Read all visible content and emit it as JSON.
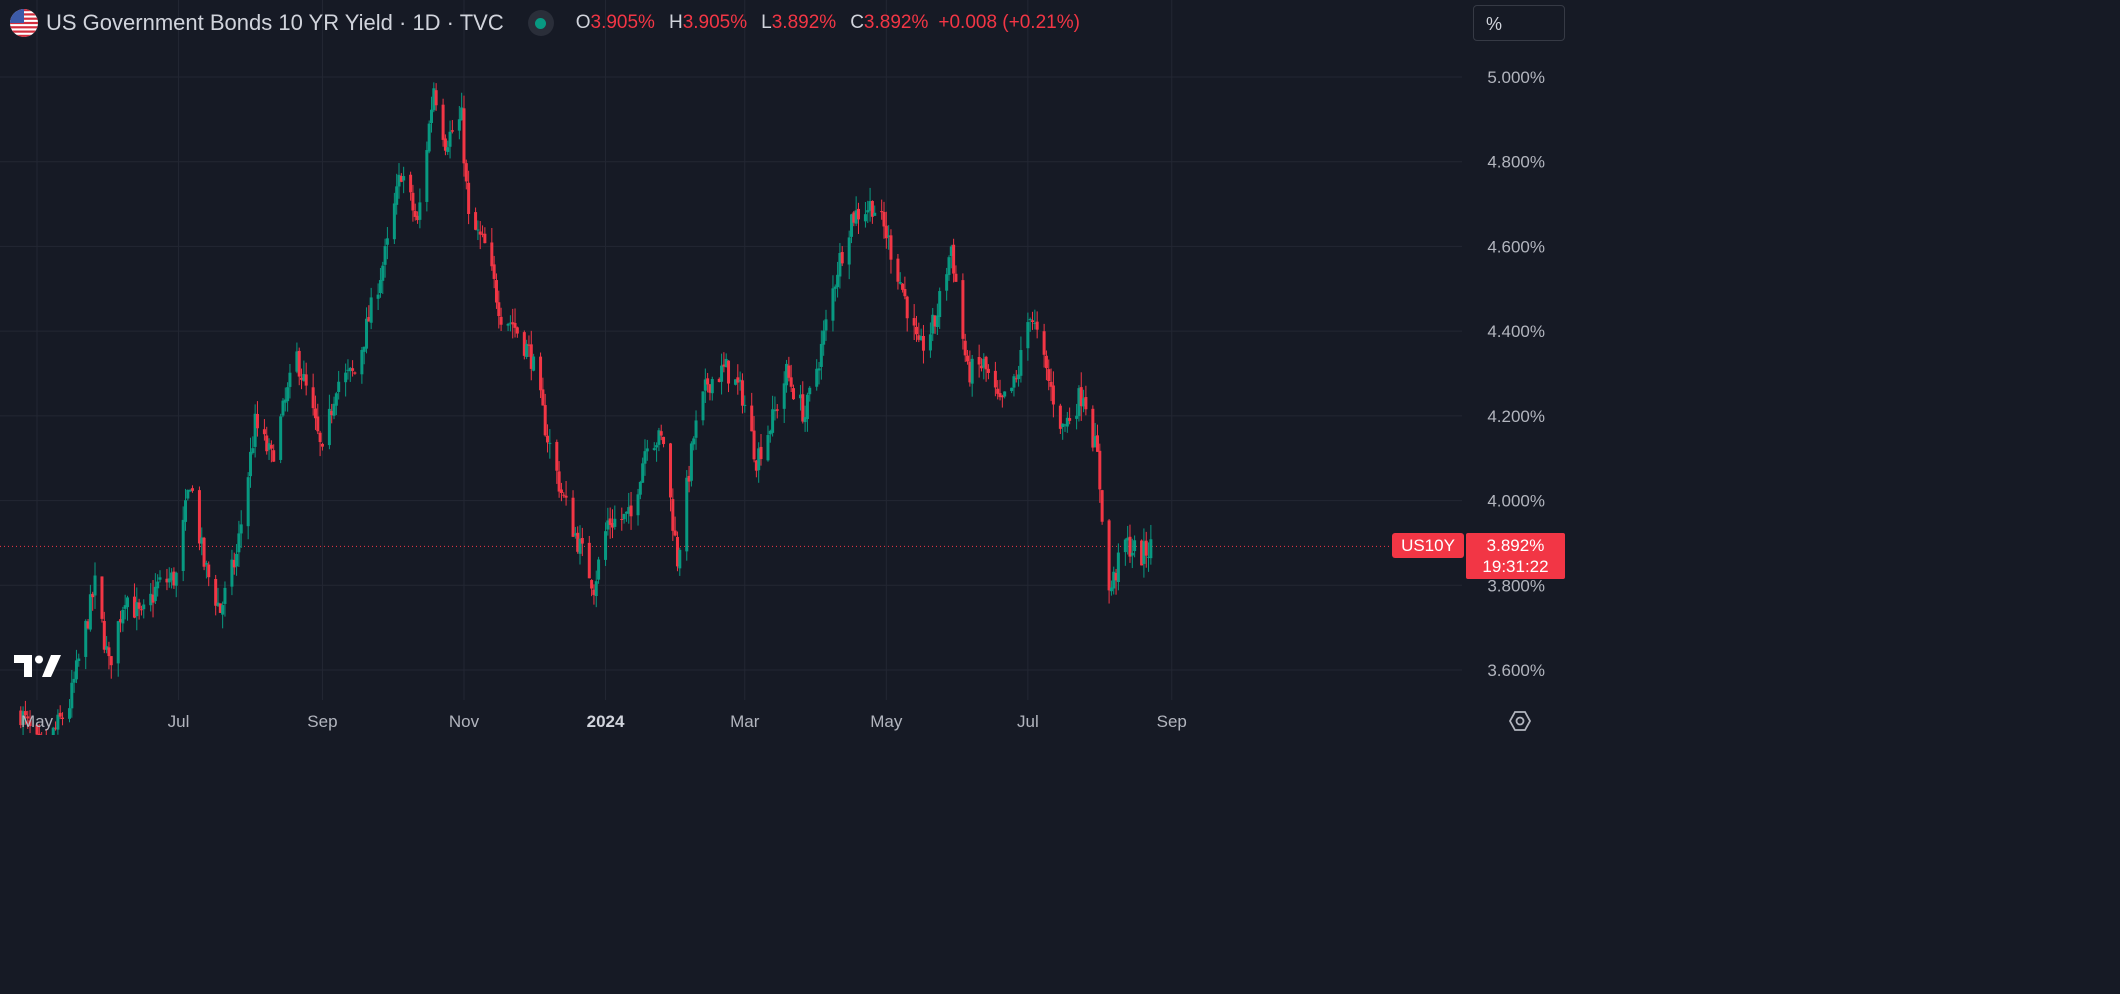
{
  "header": {
    "title": "US Government Bonds 10 YR Yield · 1D · TVC",
    "open_key": "O",
    "open": "3.905%",
    "high_key": "H",
    "high": "3.905%",
    "low_key": "L",
    "low": "3.892%",
    "close_key": "C",
    "close": "3.892%",
    "change": "+0.008 (+0.21%)"
  },
  "toolbar": {
    "scale_mode_label": "%"
  },
  "price_tag": {
    "symbol": "US10Y",
    "price": "3.892%",
    "countdown": "19:31:22"
  },
  "icons": {
    "flag": "us-flag-icon",
    "logo": "tradingview-logo-icon",
    "settings": "settings-gear-icon"
  },
  "colors": {
    "background": "#161a25",
    "up": "#089981",
    "down": "#f23645",
    "grid": "#232733",
    "text": "#d1d4dc"
  },
  "chart_data": {
    "type": "candlestick",
    "title": "",
    "xlabel": "",
    "ylabel": "",
    "y_unit": "%",
    "ylim": [
      3.5,
      5.05
    ],
    "grid": true,
    "y_ticks": [
      "5.000%",
      "4.800%",
      "4.600%",
      "4.400%",
      "4.200%",
      "4.000%",
      "3.800%",
      "3.600%"
    ],
    "y_tick_values": [
      5.0,
      4.8,
      4.6,
      4.4,
      4.2,
      4.0,
      3.8,
      3.6
    ],
    "x_ticks": [
      "May",
      "Jul",
      "Sep",
      "Nov",
      "2024",
      "Mar",
      "May",
      "Jul",
      "Sep"
    ],
    "x_tick_dates": [
      "2023-05-01",
      "2023-07-01",
      "2023-09-01",
      "2023-11-01",
      "2024-01-01",
      "2024-03-01",
      "2024-05-01",
      "2024-07-01",
      "2024-09-01"
    ],
    "x_start": "2023-04-24",
    "last_price": 3.892,
    "close_path": [
      [
        "2023-04-24",
        3.5
      ],
      [
        "2023-05-03",
        3.4
      ],
      [
        "2023-05-15",
        3.52
      ],
      [
        "2023-05-26",
        3.8
      ],
      [
        "2023-06-01",
        3.61
      ],
      [
        "2023-06-08",
        3.78
      ],
      [
        "2023-06-15",
        3.72
      ],
      [
        "2023-06-22",
        3.8
      ],
      [
        "2023-06-30",
        3.82
      ],
      [
        "2023-07-06",
        4.05
      ],
      [
        "2023-07-12",
        3.85
      ],
      [
        "2023-07-19",
        3.74
      ],
      [
        "2023-07-26",
        3.87
      ],
      [
        "2023-08-03",
        4.18
      ],
      [
        "2023-08-10",
        4.1
      ],
      [
        "2023-08-21",
        4.34
      ],
      [
        "2023-08-28",
        4.2
      ],
      [
        "2023-09-01",
        4.1
      ],
      [
        "2023-09-07",
        4.28
      ],
      [
        "2023-09-15",
        4.3
      ],
      [
        "2023-09-22",
        4.45
      ],
      [
        "2023-09-29",
        4.6
      ],
      [
        "2023-10-05",
        4.78
      ],
      [
        "2023-10-12",
        4.65
      ],
      [
        "2023-10-19",
        4.98
      ],
      [
        "2023-10-24",
        4.85
      ],
      [
        "2023-10-31",
        4.9
      ],
      [
        "2023-11-03",
        4.66
      ],
      [
        "2023-11-10",
        4.6
      ],
      [
        "2023-11-17",
        4.44
      ],
      [
        "2023-11-22",
        4.42
      ],
      [
        "2023-11-30",
        4.34
      ],
      [
        "2023-12-07",
        4.15
      ],
      [
        "2023-12-13",
        4.02
      ],
      [
        "2023-12-19",
        3.92
      ],
      [
        "2023-12-27",
        3.8
      ],
      [
        "2024-01-02",
        3.95
      ],
      [
        "2024-01-12",
        3.96
      ],
      [
        "2024-01-19",
        4.15
      ],
      [
        "2024-01-26",
        4.14
      ],
      [
        "2024-02-01",
        3.86
      ],
      [
        "2024-02-08",
        4.15
      ],
      [
        "2024-02-14",
        4.28
      ],
      [
        "2024-02-22",
        4.31
      ],
      [
        "2024-02-29",
        4.25
      ],
      [
        "2024-03-06",
        4.1
      ],
      [
        "2024-03-13",
        4.19
      ],
      [
        "2024-03-19",
        4.3
      ],
      [
        "2024-03-27",
        4.2
      ],
      [
        "2024-04-03",
        4.36
      ],
      [
        "2024-04-10",
        4.55
      ],
      [
        "2024-04-16",
        4.67
      ],
      [
        "2024-04-25",
        4.7
      ],
      [
        "2024-05-01",
        4.63
      ],
      [
        "2024-05-08",
        4.5
      ],
      [
        "2024-05-15",
        4.35
      ],
      [
        "2024-05-22",
        4.42
      ],
      [
        "2024-05-29",
        4.6
      ],
      [
        "2024-06-05",
        4.3
      ],
      [
        "2024-06-12",
        4.32
      ],
      [
        "2024-06-19",
        4.22
      ],
      [
        "2024-06-26",
        4.28
      ],
      [
        "2024-07-02",
        4.45
      ],
      [
        "2024-07-09",
        4.3
      ],
      [
        "2024-07-16",
        4.17
      ],
      [
        "2024-07-25",
        4.26
      ],
      [
        "2024-07-31",
        4.1
      ],
      [
        "2024-08-05",
        3.78
      ],
      [
        "2024-08-12",
        3.9
      ],
      [
        "2024-08-19",
        3.87
      ],
      [
        "2024-08-23",
        3.89
      ]
    ]
  }
}
